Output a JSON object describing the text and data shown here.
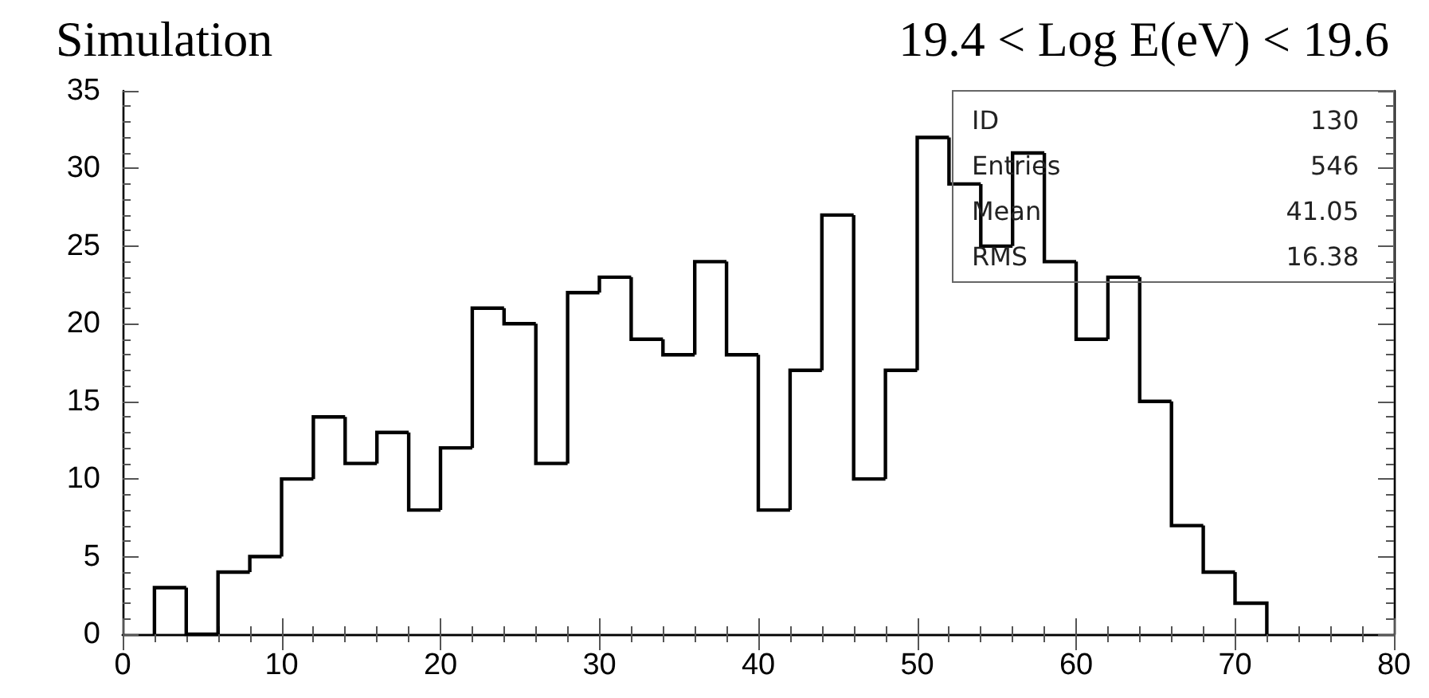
{
  "chart_data": {
    "type": "histogram",
    "title": "Simulation",
    "subtitle": "19.4 < Log E(eV) < 19.6",
    "bins": [
      2,
      4,
      6,
      8,
      10,
      12,
      14,
      16,
      18,
      20,
      22,
      24,
      26,
      28,
      30,
      32,
      34,
      36,
      38,
      40,
      42,
      44,
      46,
      48,
      50,
      52,
      54,
      56,
      58,
      60,
      62,
      64,
      66,
      68,
      70,
      72
    ],
    "values": [
      3,
      0,
      4,
      5,
      10,
      14,
      11,
      13,
      8,
      12,
      21,
      20,
      11,
      22,
      23,
      19,
      18,
      24,
      18,
      8,
      17,
      27,
      10,
      17,
      32,
      29,
      25,
      31,
      24,
      19,
      23,
      15,
      7,
      4,
      2
    ],
    "color": "#000000",
    "xlim": [
      0,
      80
    ],
    "xticks": [
      0,
      10,
      20,
      30,
      40,
      50,
      60,
      70,
      80
    ],
    "ylim": [
      0,
      35
    ],
    "yticks": [
      0,
      5,
      10,
      15,
      20,
      25,
      30,
      35
    ],
    "grid": false,
    "annotations": [
      "ID",
      "130",
      "Entries",
      "546",
      "Mean",
      "41.05",
      "RMS",
      "16.38"
    ]
  }
}
